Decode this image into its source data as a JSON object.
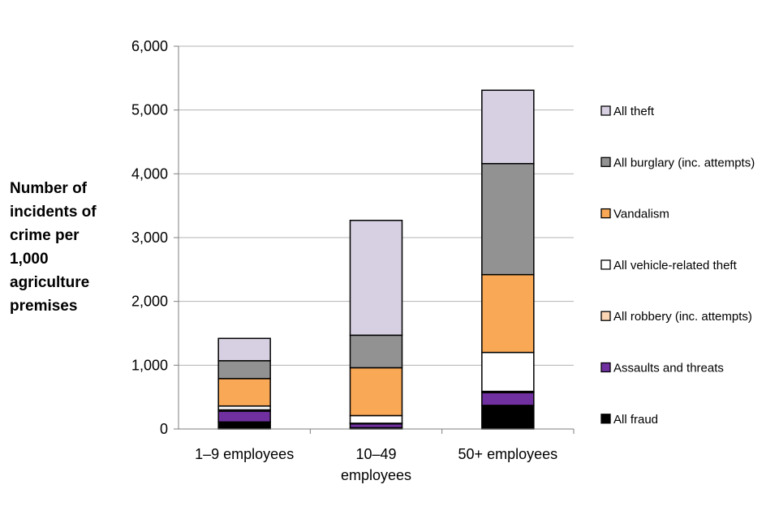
{
  "chart_data": {
    "type": "bar",
    "stacked": true,
    "title": "",
    "xlabel": "",
    "ylabel": "Number of\nincidents of\ncrime per\n1,000\nagriculture\npremises",
    "categories": [
      [
        "1–9 employees"
      ],
      [
        "10–49",
        "employees"
      ],
      [
        "50+ employees"
      ]
    ],
    "ylim": [
      0,
      6000
    ],
    "yticks": [
      0,
      1000,
      2000,
      3000,
      4000,
      5000,
      6000
    ],
    "ytick_labels": [
      "0",
      "1,000",
      "2,000",
      "3,000",
      "4,000",
      "5,000",
      "6,000"
    ],
    "grid": true,
    "legend_position": "right",
    "series": [
      {
        "name": "All fraud",
        "color": "#000000",
        "values": [
          110,
          20,
          370
        ]
      },
      {
        "name": "Assaults and threats",
        "color": "#7030a0",
        "values": [
          170,
          60,
          200
        ]
      },
      {
        "name": "All robbery (inc. attempts)",
        "color": "#fcd5b4",
        "values": [
          20,
          10,
          20
        ]
      },
      {
        "name": "All vehicle-related theft",
        "color": "#ffffff",
        "values": [
          60,
          120,
          610
        ]
      },
      {
        "name": "Vandalism",
        "color": "#f9a856",
        "values": [
          430,
          750,
          1220
        ]
      },
      {
        "name": "All burglary (inc. attempts)",
        "color": "#929292",
        "values": [
          280,
          510,
          1740
        ]
      },
      {
        "name": "All theft",
        "color": "#d7d0e2",
        "values": [
          350,
          1800,
          1150
        ]
      }
    ]
  }
}
